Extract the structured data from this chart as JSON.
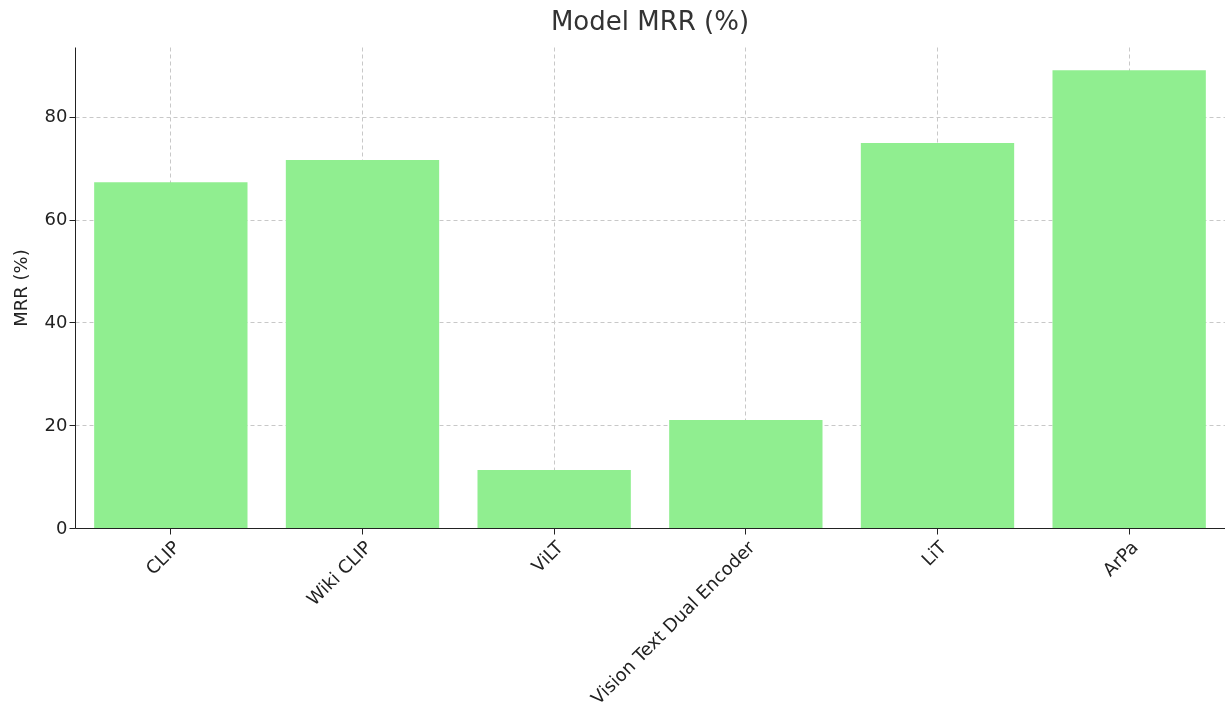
{
  "chart_data": {
    "type": "bar",
    "title": "Model MRR (%)",
    "ylabel": "MRR (%)",
    "categories": [
      "CLIP",
      "Wiki CLIP",
      "ViLT",
      "Vision Text Dual Encoder",
      "LiT",
      "ArPa"
    ],
    "values": [
      67.3,
      71.6,
      11.3,
      21.0,
      74.9,
      89.1
    ],
    "color": "#90ee90",
    "ylim": [
      0,
      93.6
    ],
    "yticks": [
      0,
      20,
      40,
      60,
      80
    ],
    "grid": true
  }
}
